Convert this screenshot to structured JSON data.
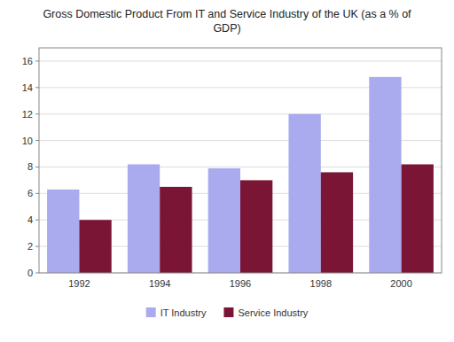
{
  "chart_data": {
    "type": "bar",
    "title": "Gross Domestic Product From IT and Service Industry of the UK (as a % of\nGDP)",
    "categories": [
      "1992",
      "1994",
      "1996",
      "1998",
      "2000"
    ],
    "series": [
      {
        "name": "IT Industry",
        "color": "#aaaaee",
        "values": [
          6.3,
          8.2,
          7.9,
          12.0,
          14.8
        ]
      },
      {
        "name": "Service Industry",
        "color": "#7b1535",
        "values": [
          4.0,
          6.5,
          7.0,
          7.6,
          8.2
        ]
      }
    ],
    "ylim": [
      0,
      17
    ],
    "yticks": [
      0,
      2,
      4,
      6,
      8,
      10,
      12,
      14,
      16
    ],
    "grid": true,
    "legend": "bottom"
  }
}
